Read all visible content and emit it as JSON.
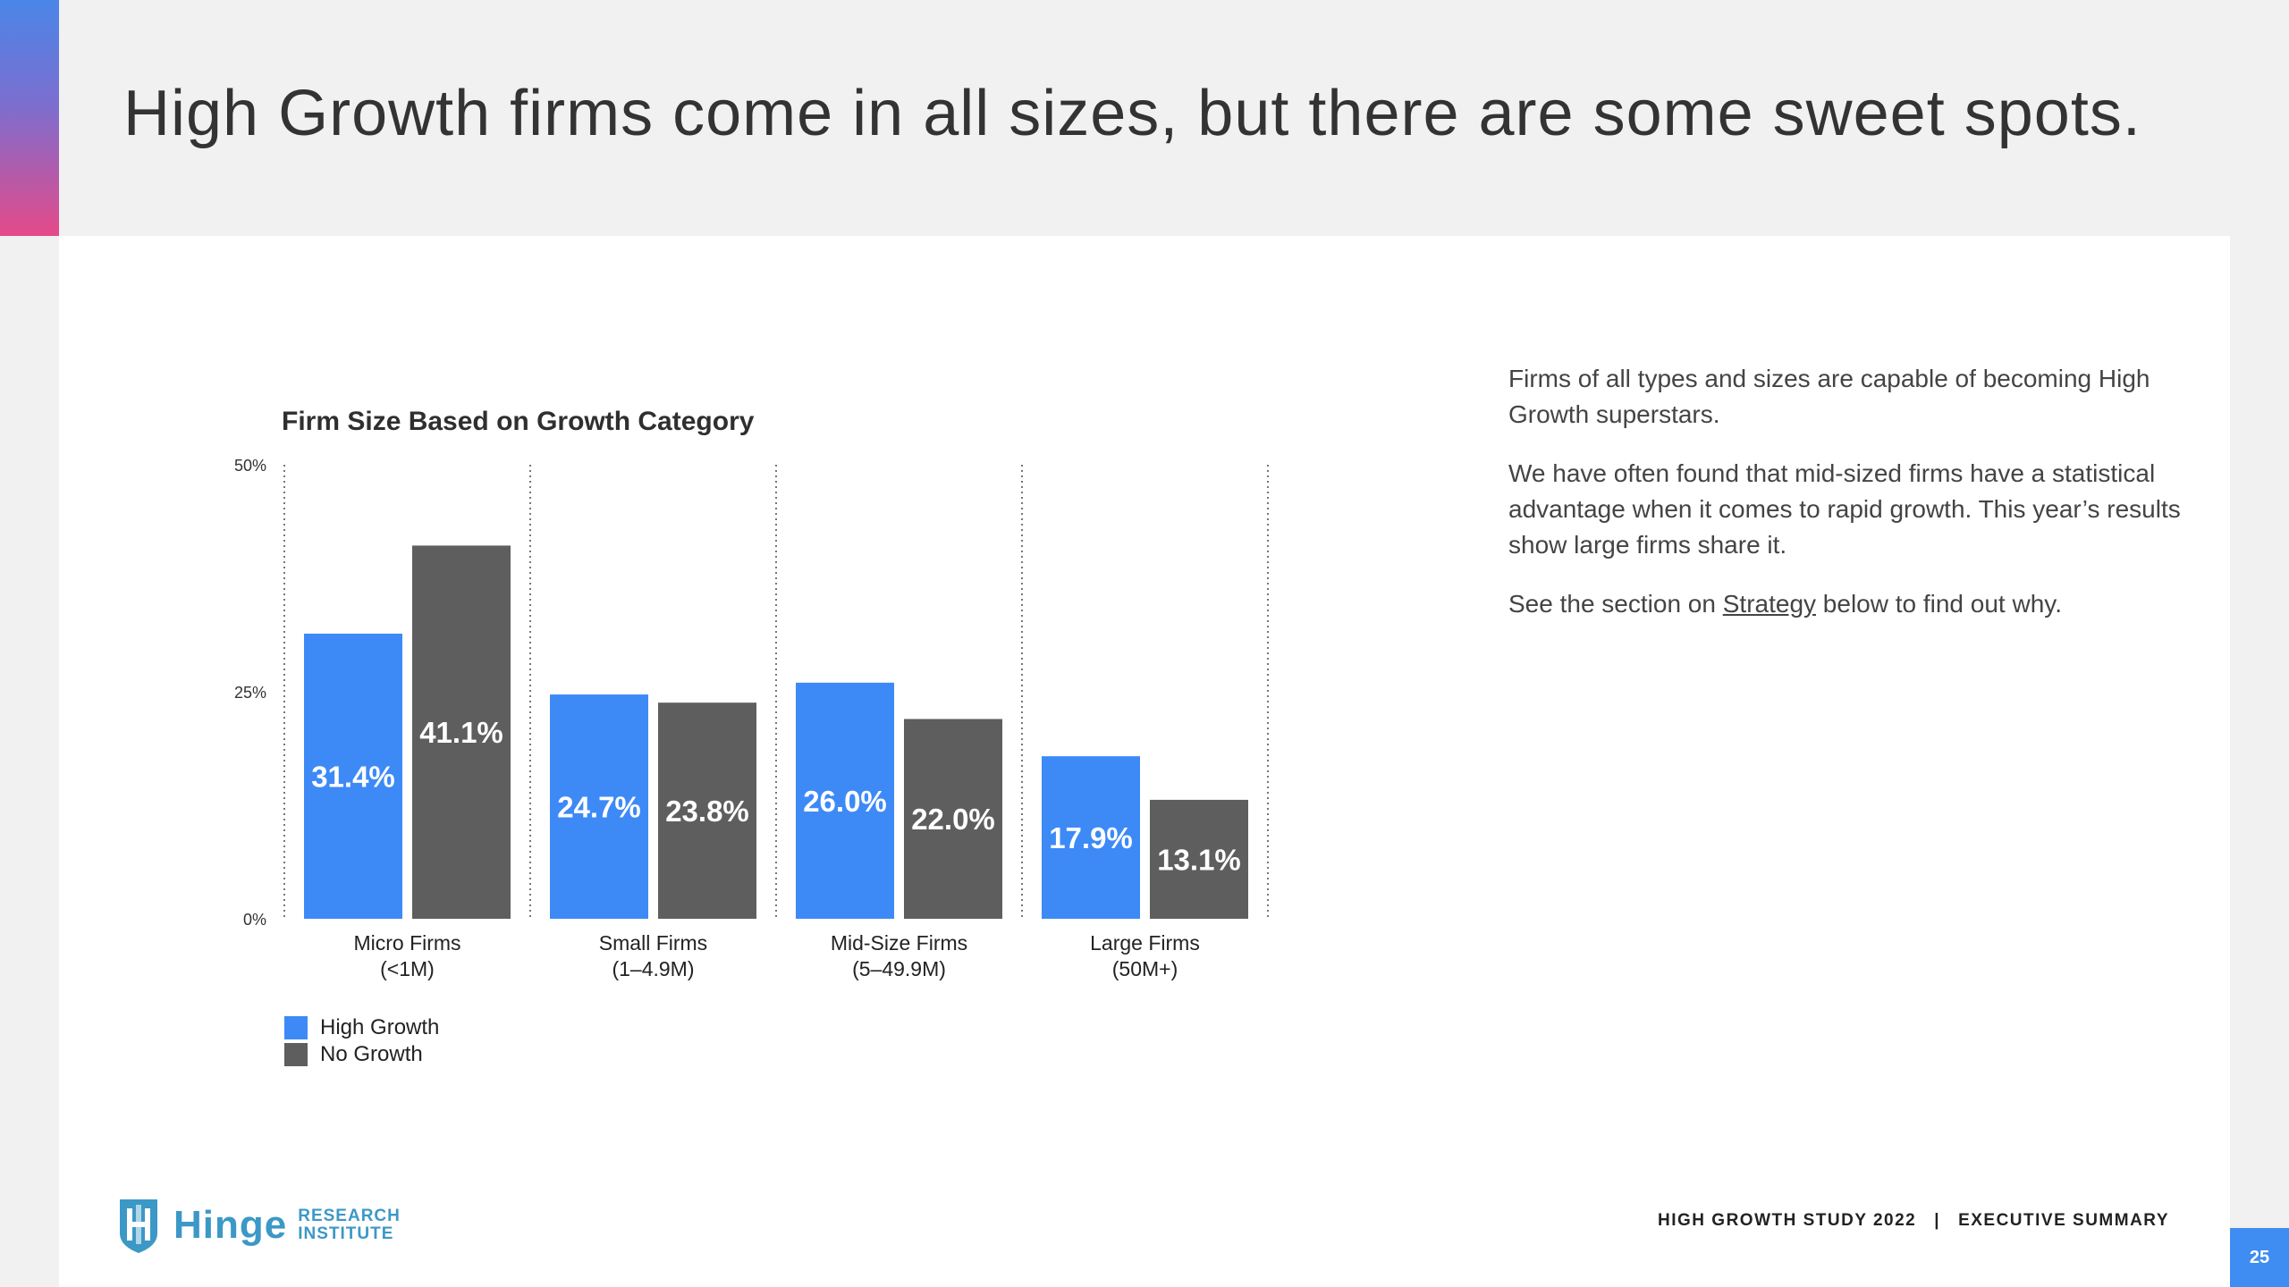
{
  "slide": {
    "title": "High Growth firms come in all sizes, but there are some sweet spots.",
    "page_number": "25"
  },
  "body": {
    "paragraph1": "Firms of all types and sizes are capable of becoming High Growth superstars.",
    "paragraph2": "We have often found that mid-sized firms have a statistical advantage when it comes to rapid growth. This year’s results show large firms share it.",
    "p3_before": "See the section on ",
    "p3_link": "Strategy",
    "p3_after": " below to find out why."
  },
  "logo": {
    "word": "Hinge",
    "sub_line1": "RESEARCH",
    "sub_line2": "INSTITUTE"
  },
  "footer": {
    "study": "HIGH GROWTH STUDY 2022",
    "separator": "|",
    "section": "EXECUTIVE SUMMARY"
  },
  "colors": {
    "high_growth": "#3d8af7",
    "no_growth": "#5e5e5e",
    "accent": "#3f8cf2"
  },
  "chart_data": {
    "type": "bar",
    "title": "Firm Size Based on Growth Category",
    "categories": [
      [
        "Micro Firms",
        "(<1M)"
      ],
      [
        "Small Firms",
        "(1–4.9M)"
      ],
      [
        "Mid-Size Firms",
        "(5–49.9M)"
      ],
      [
        "Large Firms",
        "(50M+)"
      ]
    ],
    "series": [
      {
        "name": "High Growth",
        "values": [
          31.4,
          24.7,
          26.0,
          17.9
        ],
        "labels": [
          "31.4%",
          "24.7%",
          "26.0%",
          "17.9%"
        ]
      },
      {
        "name": "No Growth",
        "values": [
          41.1,
          23.8,
          22.0,
          13.1
        ],
        "labels": [
          "41.1%",
          "23.8%",
          "22.0%",
          "13.1%"
        ]
      }
    ],
    "yticks": [
      0,
      25,
      50
    ],
    "ytick_labels": [
      "0%",
      "25%",
      "50%"
    ],
    "ylim": [
      0,
      50
    ],
    "xlabel": "",
    "ylabel": "",
    "legend": "bottom-left"
  }
}
